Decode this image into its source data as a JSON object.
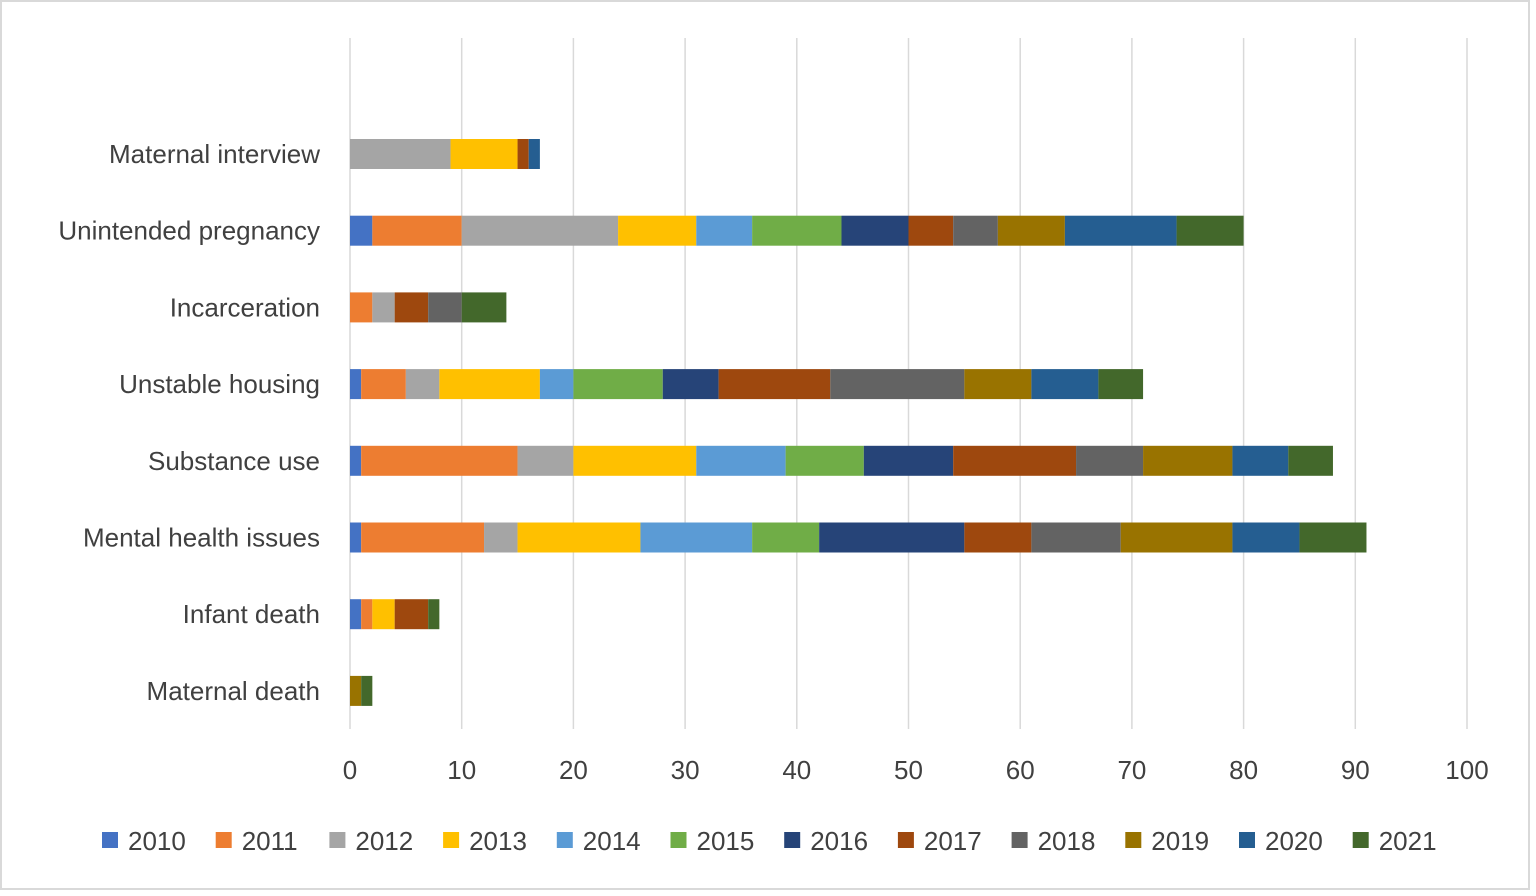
{
  "chart_data": {
    "type": "bar",
    "orientation": "horizontal",
    "stacked": true,
    "title": "",
    "xlabel": "",
    "ylabel": "",
    "xlim": [
      0,
      100
    ],
    "x_ticks": [
      0,
      10,
      20,
      30,
      40,
      50,
      60,
      70,
      80,
      90,
      100
    ],
    "grid": "vertical",
    "legend_position": "bottom",
    "categories": [
      "Maternal interview",
      "Unintended pregnancy",
      "Incarceration",
      "Unstable housing",
      "Substance use",
      "Mental health issues",
      "Infant death",
      "Maternal death"
    ],
    "series": [
      {
        "name": "2010",
        "color": "#4472C4",
        "values": [
          0,
          2,
          0,
          1,
          1,
          1,
          1,
          0
        ]
      },
      {
        "name": "2011",
        "color": "#ED7D31",
        "values": [
          0,
          8,
          2,
          4,
          14,
          11,
          1,
          0
        ]
      },
      {
        "name": "2012",
        "color": "#A5A5A5",
        "values": [
          9,
          14,
          2,
          3,
          5,
          3,
          0,
          0
        ]
      },
      {
        "name": "2013",
        "color": "#FFC000",
        "values": [
          6,
          7,
          0,
          9,
          11,
          11,
          2,
          0
        ]
      },
      {
        "name": "2014",
        "color": "#5B9BD5",
        "values": [
          0,
          5,
          0,
          3,
          8,
          10,
          0,
          0
        ]
      },
      {
        "name": "2015",
        "color": "#70AD47",
        "values": [
          0,
          8,
          0,
          8,
          7,
          6,
          0,
          0
        ]
      },
      {
        "name": "2016",
        "color": "#264478",
        "values": [
          0,
          6,
          0,
          5,
          8,
          13,
          0,
          0
        ]
      },
      {
        "name": "2017",
        "color": "#9E480E",
        "values": [
          1,
          4,
          3,
          10,
          11,
          6,
          3,
          0
        ]
      },
      {
        "name": "2018",
        "color": "#636363",
        "values": [
          0,
          4,
          3,
          12,
          6,
          8,
          0,
          0
        ]
      },
      {
        "name": "2019",
        "color": "#997300",
        "values": [
          0,
          6,
          0,
          6,
          8,
          10,
          0,
          1
        ]
      },
      {
        "name": "2020",
        "color": "#255E91",
        "values": [
          1,
          10,
          0,
          6,
          5,
          6,
          0,
          0
        ]
      },
      {
        "name": "2021",
        "color": "#43682B",
        "values": [
          0,
          6,
          4,
          4,
          4,
          6,
          1,
          1
        ]
      }
    ]
  }
}
